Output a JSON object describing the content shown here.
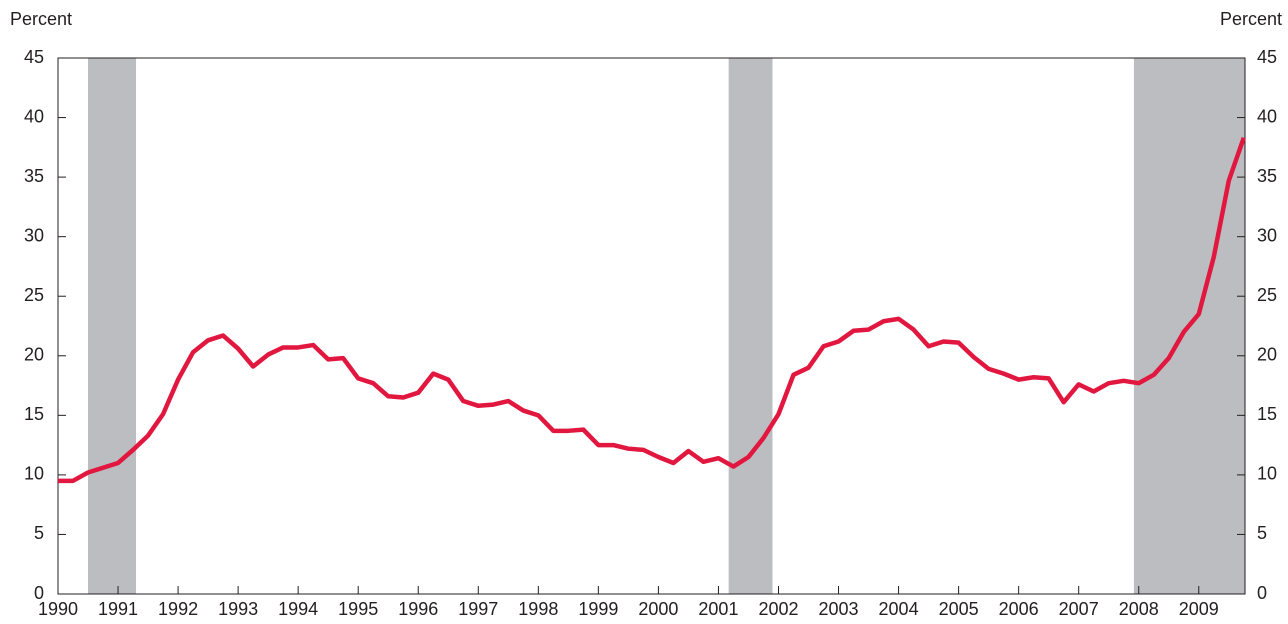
{
  "chart_data": {
    "type": "line",
    "y_label": "Percent",
    "y2_label": "Percent",
    "color": "#e2173f",
    "shade_color": "#bcbdc0",
    "x": [
      1990,
      1990.25,
      1990.5,
      1990.75,
      1991,
      1991.25,
      1991.5,
      1991.75,
      1992,
      1992.25,
      1992.5,
      1992.75,
      1993,
      1993.25,
      1993.5,
      1993.75,
      1994,
      1994.25,
      1994.5,
      1994.75,
      1995,
      1995.25,
      1995.5,
      1995.75,
      1996,
      1996.25,
      1996.5,
      1996.75,
      1997,
      1997.25,
      1997.5,
      1997.75,
      1998,
      1998.25,
      1998.5,
      1998.75,
      1999,
      1999.25,
      1999.5,
      1999.75,
      2000,
      2000.25,
      2000.5,
      2000.75,
      2001,
      2001.25,
      2001.5,
      2001.75,
      2002,
      2002.25,
      2002.5,
      2002.75,
      2003,
      2003.25,
      2003.5,
      2003.75,
      2004,
      2004.25,
      2004.5,
      2004.75,
      2005,
      2005.25,
      2005.5,
      2005.75,
      2006,
      2006.25,
      2006.5,
      2006.75,
      2007,
      2007.25,
      2007.5,
      2007.75,
      2008,
      2008.25,
      2008.5,
      2008.75,
      2009,
      2009.25,
      2009.5,
      2009.75
    ],
    "values": [
      9.5,
      9.5,
      10.2,
      10.6,
      11.0,
      12.1,
      13.3,
      15.1,
      18.0,
      20.3,
      21.3,
      21.7,
      20.6,
      19.1,
      20.1,
      20.7,
      20.7,
      20.9,
      19.7,
      19.8,
      18.1,
      17.7,
      16.6,
      16.5,
      16.9,
      18.5,
      18.0,
      16.2,
      15.8,
      15.9,
      16.2,
      15.4,
      15.0,
      13.7,
      13.7,
      13.8,
      12.5,
      12.5,
      12.2,
      12.1,
      11.5,
      11.0,
      12.0,
      11.1,
      11.4,
      10.7,
      11.5,
      13.1,
      15.1,
      18.4,
      19.0,
      20.8,
      21.2,
      22.1,
      22.2,
      22.9,
      23.1,
      22.2,
      20.8,
      21.2,
      21.1,
      19.9,
      18.9,
      18.5,
      18.0,
      18.2,
      18.1,
      16.1,
      17.6,
      17.0,
      17.7,
      17.9,
      17.7,
      18.4,
      19.8,
      22.0,
      23.5,
      28.3,
      34.7,
      38.3
    ],
    "shaded_periods": [
      [
        1990.5,
        1991.3
      ],
      [
        2001.17,
        2001.9
      ],
      [
        2007.92,
        2009.77
      ]
    ],
    "xlim": [
      1990,
      2009.77
    ],
    "xticks": [
      1990,
      1991,
      1992,
      1993,
      1994,
      1995,
      1996,
      1997,
      1998,
      1999,
      2000,
      2001,
      2002,
      2003,
      2004,
      2005,
      2006,
      2007,
      2008,
      2009
    ],
    "ylim": [
      0,
      45
    ],
    "yticks": [
      0,
      5,
      10,
      15,
      20,
      25,
      30,
      35,
      40,
      45
    ],
    "y2lim": [
      0,
      45
    ],
    "y2ticks": [
      0,
      5,
      10,
      15,
      20,
      25,
      30,
      35,
      40,
      45
    ]
  }
}
